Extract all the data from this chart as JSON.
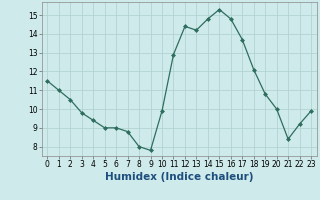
{
  "x": [
    0,
    1,
    2,
    3,
    4,
    5,
    6,
    7,
    8,
    9,
    10,
    11,
    12,
    13,
    14,
    15,
    16,
    17,
    18,
    19,
    20,
    21,
    22,
    23
  ],
  "y": [
    11.5,
    11.0,
    10.5,
    9.8,
    9.4,
    9.0,
    9.0,
    8.8,
    8.0,
    7.8,
    9.9,
    12.9,
    14.4,
    14.2,
    14.8,
    15.3,
    14.8,
    13.7,
    12.1,
    10.8,
    10.0,
    8.4,
    9.2,
    9.9
  ],
  "xlabel": "Humidex (Indice chaleur)",
  "xlim": [
    -0.5,
    23.5
  ],
  "ylim": [
    7.5,
    15.7
  ],
  "yticks": [
    8,
    9,
    10,
    11,
    12,
    13,
    14,
    15
  ],
  "xticks": [
    0,
    1,
    2,
    3,
    4,
    5,
    6,
    7,
    8,
    9,
    10,
    11,
    12,
    13,
    14,
    15,
    16,
    17,
    18,
    19,
    20,
    21,
    22,
    23
  ],
  "line_color": "#2e6e5e",
  "marker": "D",
  "marker_size": 2.0,
  "bg_color": "#ceeaea",
  "grid_color": "#aed0d0",
  "tick_label_fontsize": 5.5,
  "xlabel_fontsize": 7.5,
  "xlabel_color": "#1e4e7e"
}
